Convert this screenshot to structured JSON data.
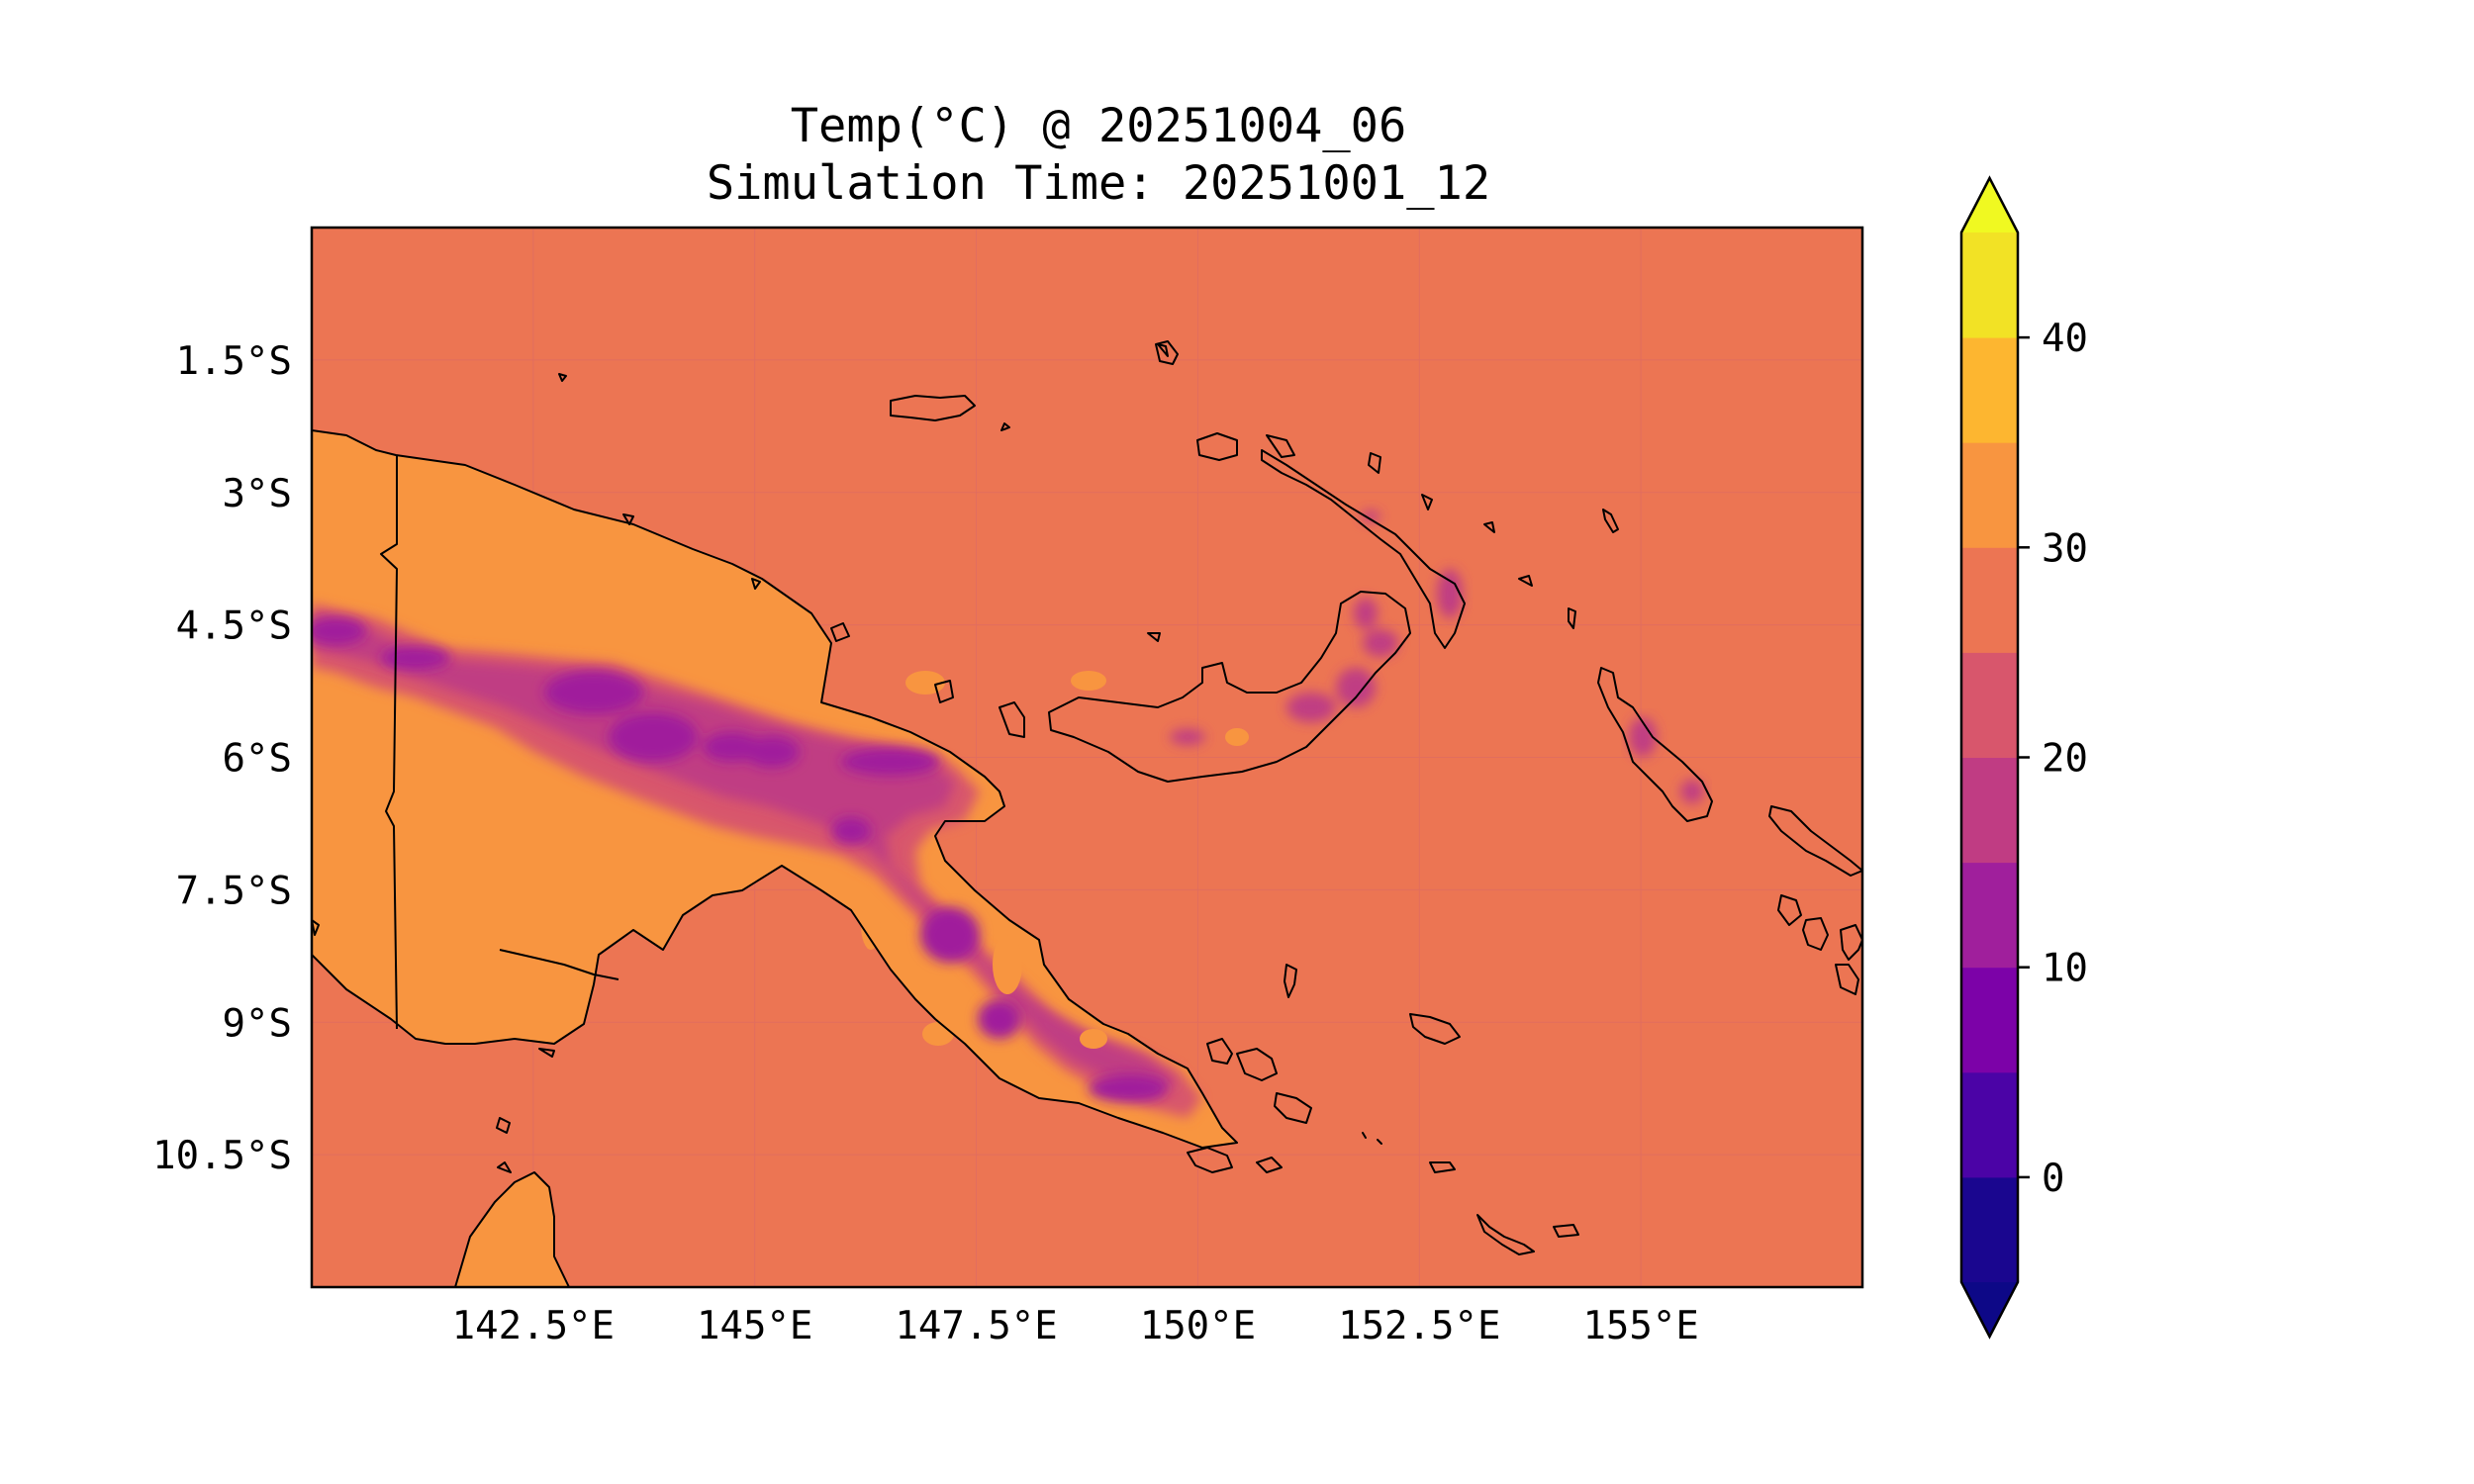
{
  "title": {
    "line1": "Temp(°C) @ 20251004_06",
    "line2": "Simulation Time: 20251001_12"
  },
  "map": {
    "variable": "Temp(°C)",
    "region": "Papua New Guinea",
    "extent": {
      "lon": [
        140.0,
        157.5
      ],
      "lat": [
        -12.0,
        -0.0
      ]
    },
    "lon_ticks": [
      {
        "value": 142.5,
        "label": "142.5°E"
      },
      {
        "value": 145.0,
        "label": "145°E"
      },
      {
        "value": 147.5,
        "label": "147.5°E"
      },
      {
        "value": 150.0,
        "label": "150°E"
      },
      {
        "value": 152.5,
        "label": "152.5°E"
      },
      {
        "value": 155.0,
        "label": "155°E"
      }
    ],
    "lat_ticks": [
      {
        "value": -1.5,
        "label": "1.5°S"
      },
      {
        "value": -3.0,
        "label": "3°S"
      },
      {
        "value": -4.5,
        "label": "4.5°S"
      },
      {
        "value": -6.0,
        "label": "6°S"
      },
      {
        "value": -7.5,
        "label": "7.5°S"
      },
      {
        "value": -9.0,
        "label": "9°S"
      },
      {
        "value": -10.5,
        "label": "10.5°S"
      }
    ],
    "gridlines": true,
    "ocean_value_range": [
      25,
      30
    ]
  },
  "colorbar": {
    "colormap": "plasma",
    "extend": "both",
    "levels": [
      -5,
      0,
      5,
      10,
      15,
      20,
      25,
      30,
      35,
      40,
      45
    ],
    "colors": [
      "#1a068f",
      "#4b03a6",
      "#7c02a8",
      "#a01f9c",
      "#c03c83",
      "#d8566c",
      "#ec7553",
      "#f89540",
      "#fdb630",
      "#f2e225"
    ],
    "under_color": "#0d0887",
    "over_color": "#f0f921",
    "ticks": [
      {
        "value": 0,
        "label": "0"
      },
      {
        "value": 10,
        "label": "10"
      },
      {
        "value": 20,
        "label": "20"
      },
      {
        "value": 30,
        "label": "30"
      },
      {
        "value": 40,
        "label": "40"
      }
    ]
  }
}
